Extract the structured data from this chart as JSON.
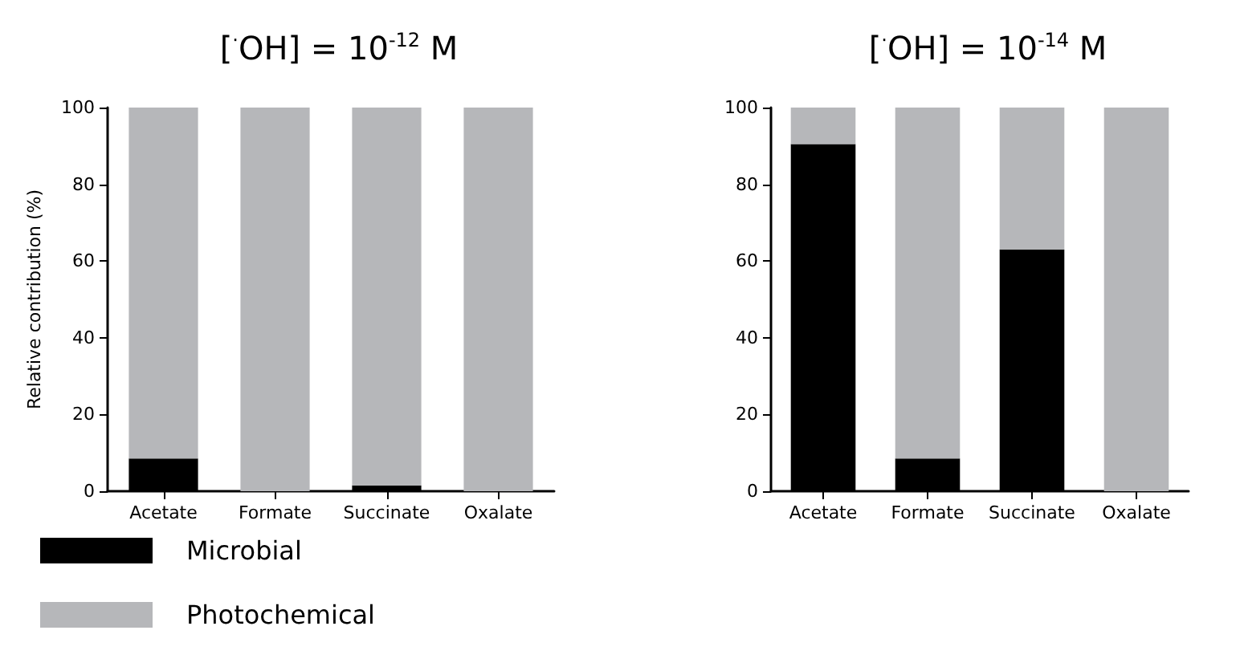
{
  "chart_data": [
    {
      "type": "bar",
      "title": "[$^{·}$OH] = 10$^{-12}$ M",
      "ylabel": "Relative contribution (%)",
      "categories": [
        "Acetate",
        "Formate",
        "Succinate",
        "Oxalate"
      ],
      "stacked": true,
      "ylim": [
        0,
        100
      ],
      "yticks": [
        0,
        20,
        40,
        60,
        80,
        100
      ],
      "grid": false,
      "legend": "bottom left",
      "series": [
        {
          "name": "Microbial",
          "color": "#000000",
          "values": [
            8.5,
            0,
            1.5,
            0
          ]
        },
        {
          "name": "Photochemical",
          "color": "#b6b7ba",
          "values": [
            91.5,
            100,
            98.5,
            100
          ]
        }
      ]
    },
    {
      "type": "bar",
      "title": "[$^{·}$OH] = 10$^{-14}$ M",
      "categories": [
        "Acetate",
        "Formate",
        "Succinate",
        "Oxalate"
      ],
      "stacked": true,
      "ylim": [
        0,
        100
      ],
      "yticks": [
        0,
        20,
        40,
        60,
        80,
        100
      ],
      "grid": false,
      "series": [
        {
          "color": "#000000",
          "values": [
            90.5,
            8.5,
            63,
            0
          ]
        },
        {
          "color": "#b6b7ba",
          "values": [
            9.5,
            91.5,
            37,
            100
          ]
        }
      ]
    }
  ]
}
